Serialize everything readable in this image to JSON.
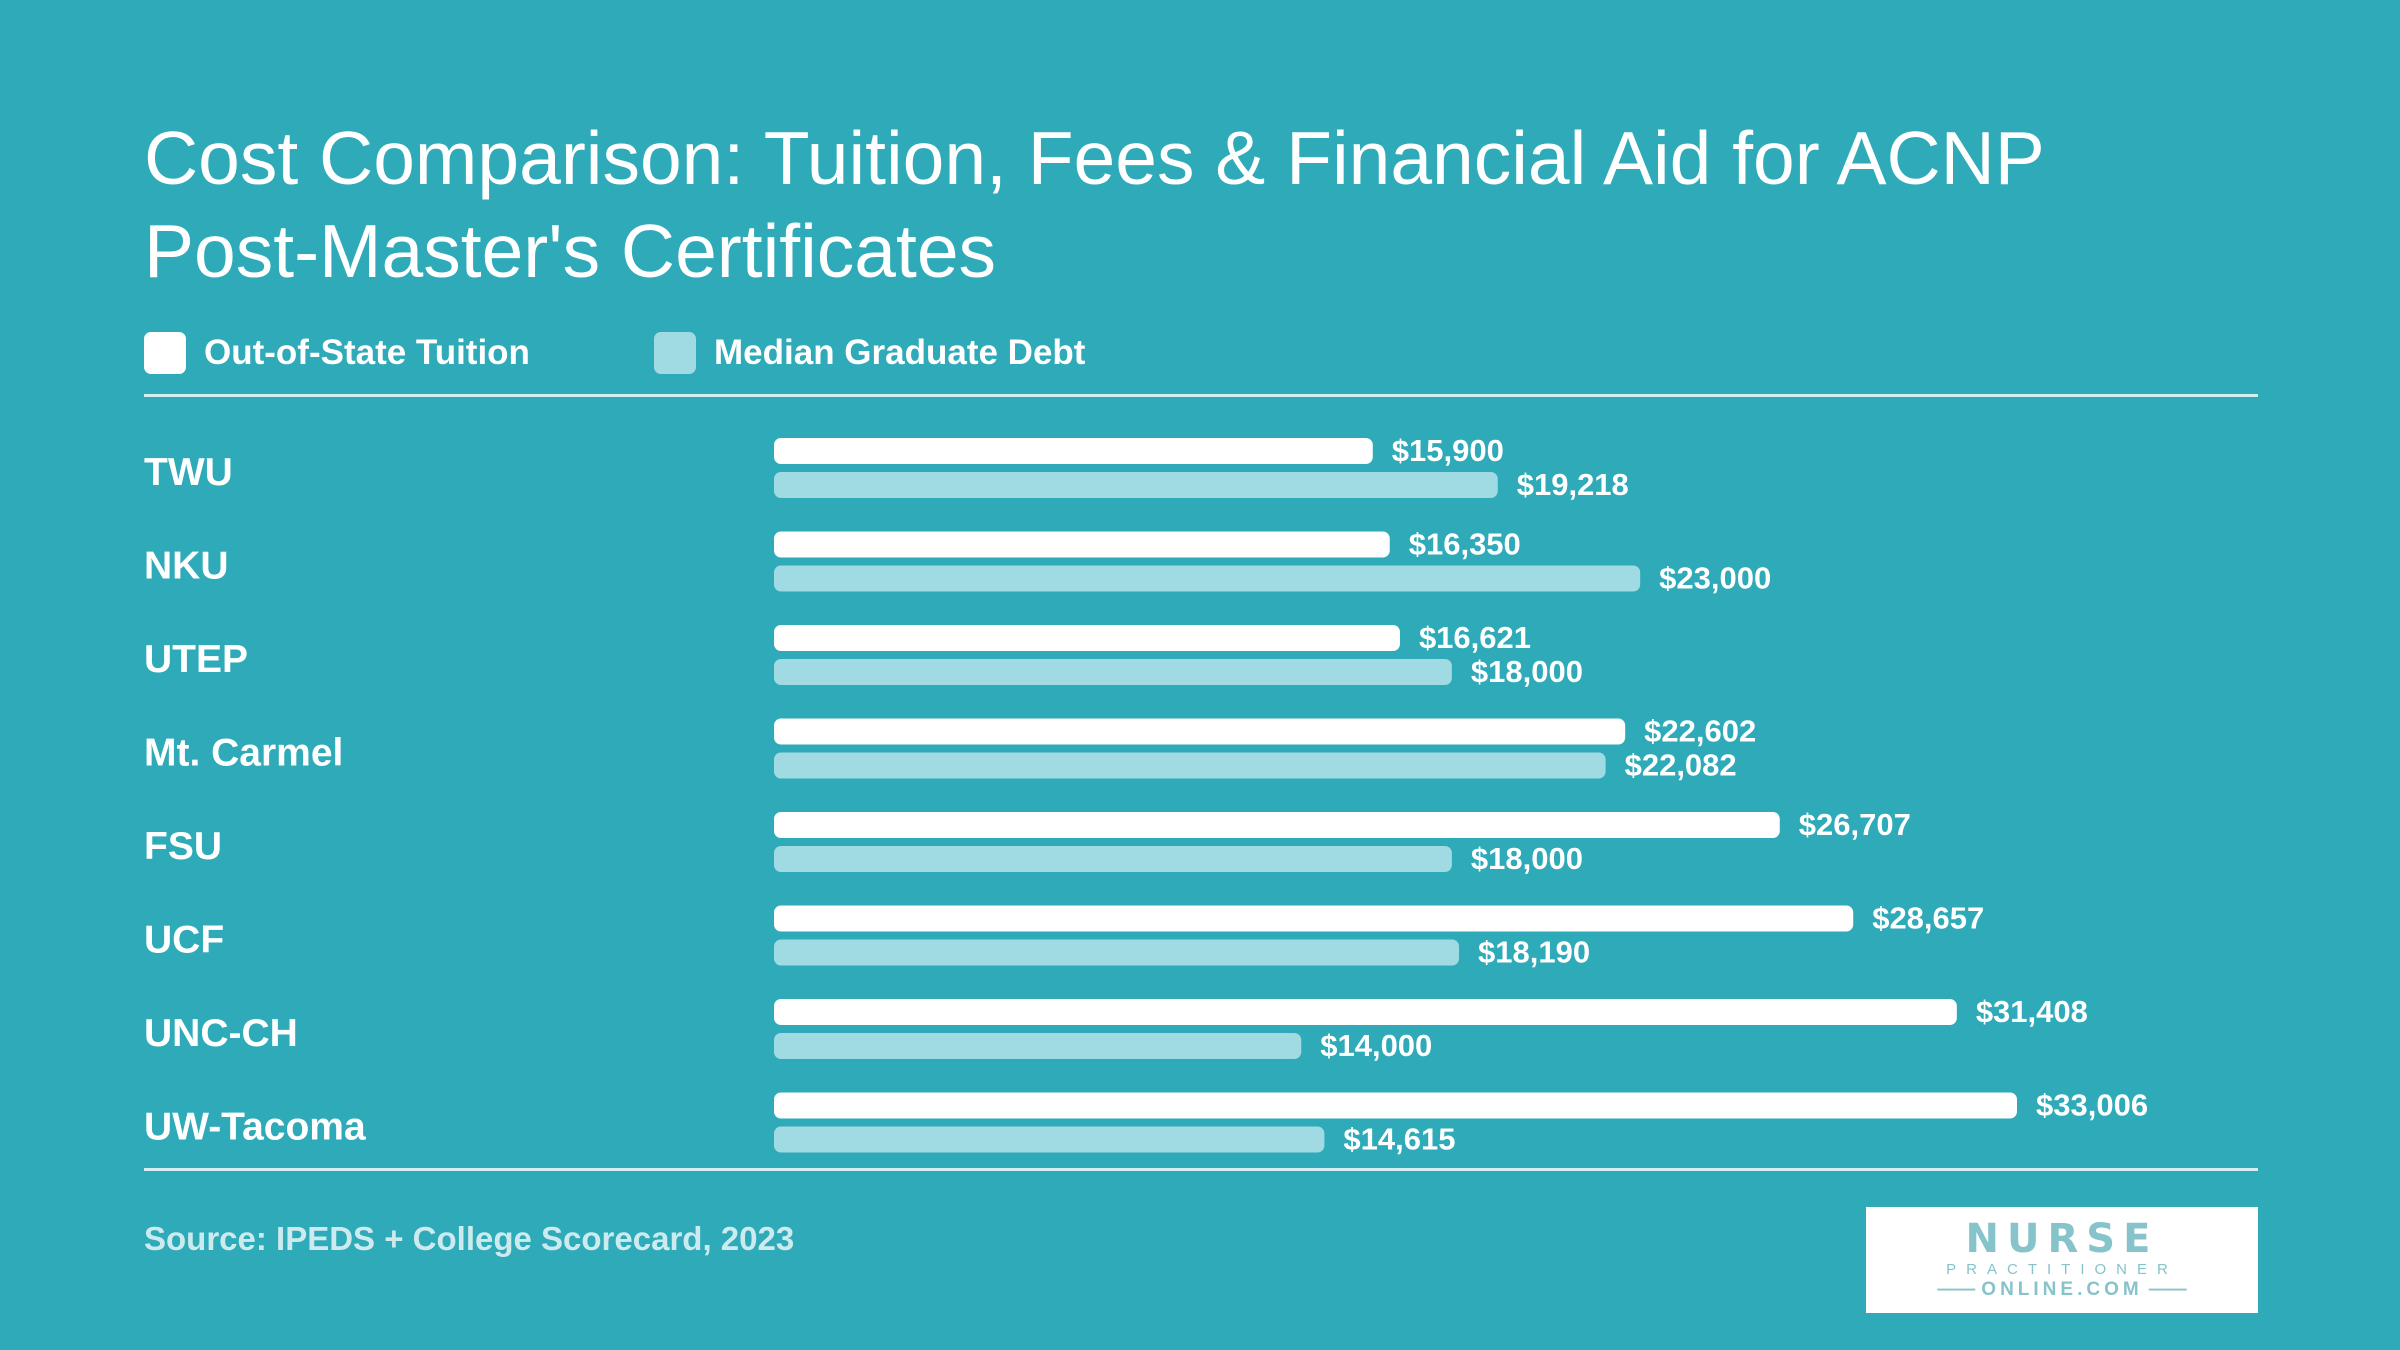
{
  "chart_data": {
    "type": "bar",
    "orientation": "horizontal",
    "title": "Cost Comparison: Tuition, Fees & Financial Aid for ACNP Post-Master's Certificates",
    "categories": [
      "TWU",
      "NKU",
      "UTEP",
      "Mt. Carmel",
      "FSU",
      "UCF",
      "UNC-CH",
      "UW-Tacoma"
    ],
    "series": [
      {
        "name": "Out-of-State Tuition",
        "color": "#ffffff",
        "values": [
          15900,
          16350,
          16621,
          22602,
          26707,
          28657,
          31408,
          33006
        ],
        "labels": [
          "$15,900",
          "$16,350",
          "$16,621",
          "$22,602",
          "$26,707",
          "$28,657",
          "$31,408",
          "$33,006"
        ]
      },
      {
        "name": "Median Graduate Debt",
        "color": "#a0dbe3",
        "values": [
          19218,
          23000,
          18000,
          22082,
          18000,
          18190,
          14000,
          14615
        ],
        "labels": [
          "$19,218",
          "$23,000",
          "$18,000",
          "$22,082",
          "$18,000",
          "$18,190",
          "$14,000",
          "$14,615"
        ]
      }
    ],
    "xlim": [
      0,
      33006
    ],
    "grid": false,
    "legend": "top-left"
  },
  "source": "Source: IPEDS + College Scorecard, 2023",
  "logo": {
    "line1": "NURSE",
    "line2": "PRACTITIONER",
    "line3": "ONLINE.COM"
  },
  "colors": {
    "background": "#2eaab9",
    "text": "#ffffff",
    "rule": "#d4eef2",
    "logo": "#86c3cb"
  }
}
